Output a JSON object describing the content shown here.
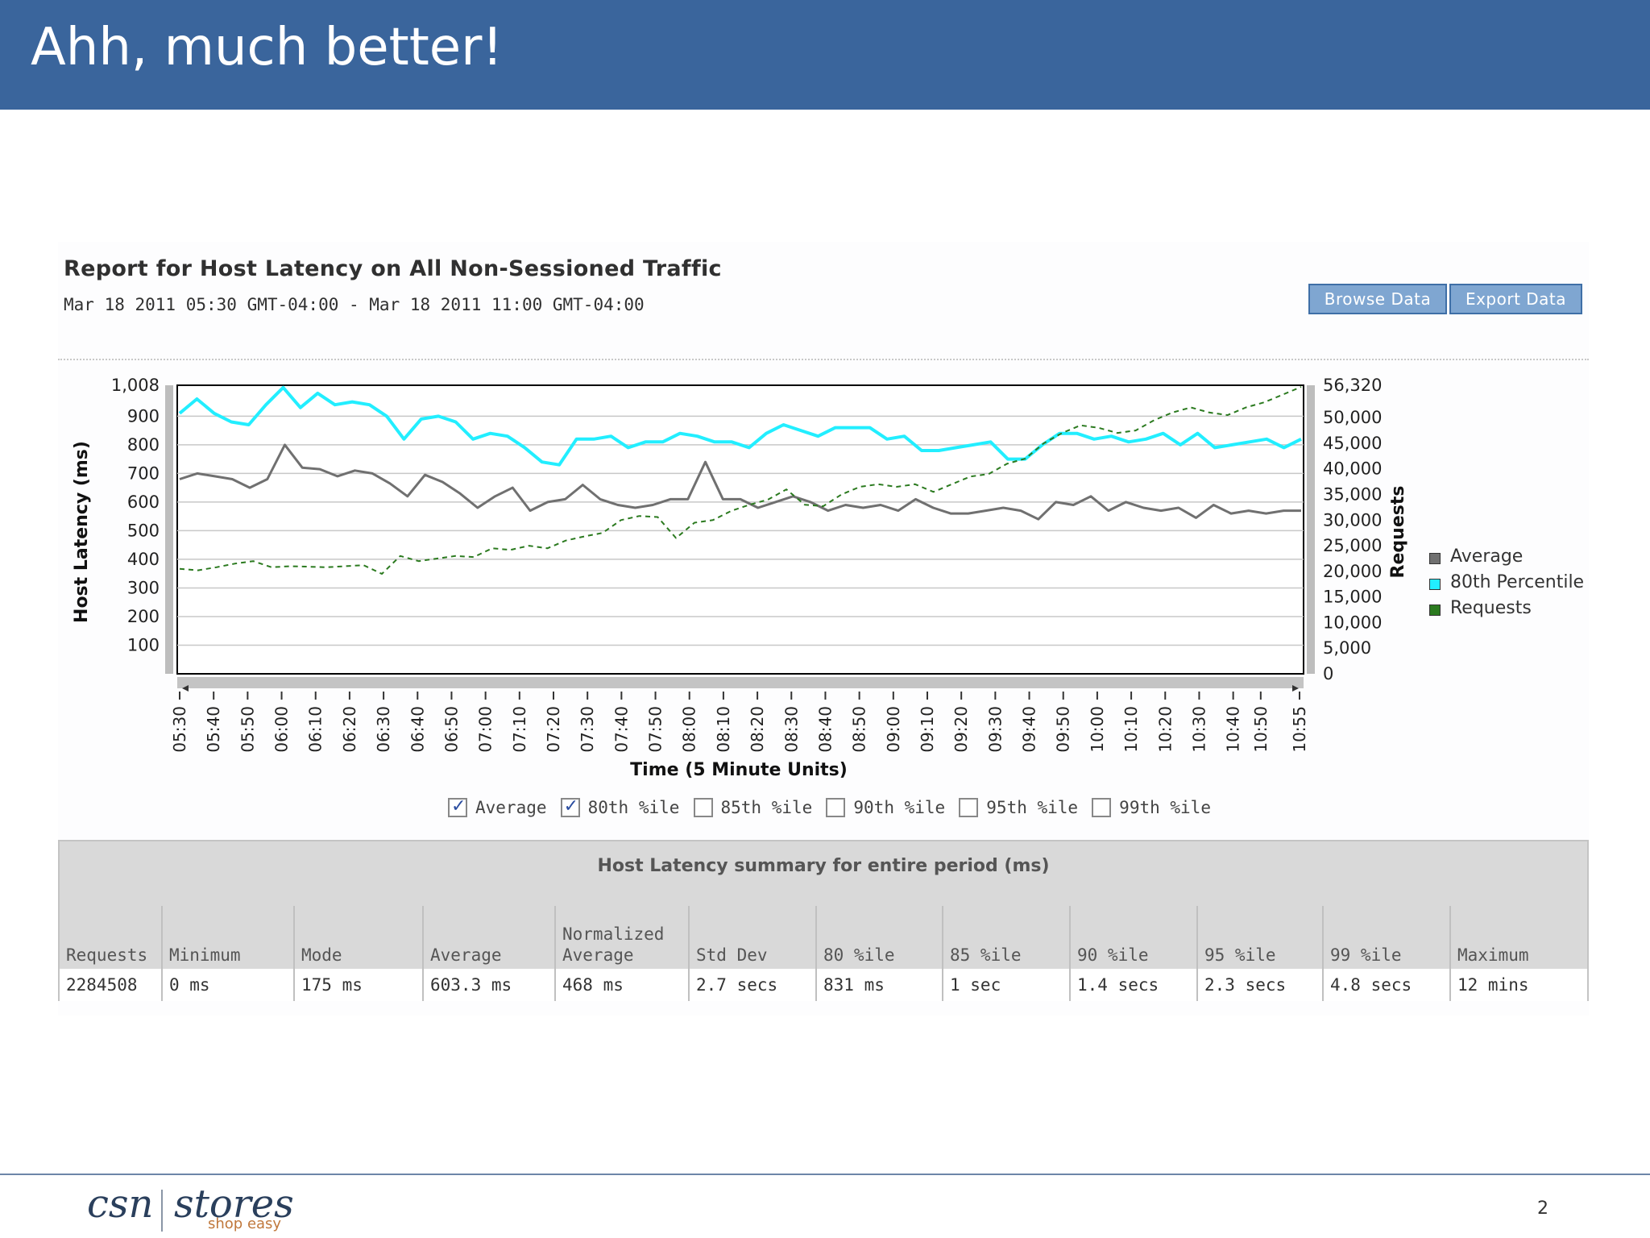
{
  "slide": {
    "title": "Ahh, much better!",
    "page_number": "2"
  },
  "report": {
    "title": "Report for Host Latency on All Non-Sessioned Traffic",
    "range": "Mar 18 2011 05:30 GMT-04:00 - Mar 18 2011 11:00 GMT-04:00",
    "browse_label": "Browse Data",
    "export_label": "Export Data"
  },
  "chart_data": {
    "type": "line",
    "xlabel": "Time (5 Minute Units)",
    "ylabel": "Host Latency (ms)",
    "y2label": "Requests",
    "ylim": [
      0,
      1008
    ],
    "y2lim": [
      0,
      56320
    ],
    "yticks": [
      "1,008",
      "900",
      "800",
      "700",
      "600",
      "500",
      "400",
      "300",
      "200",
      "100"
    ],
    "y2ticks": [
      "56,320",
      "50,000",
      "45,000",
      "40,000",
      "35,000",
      "30,000",
      "25,000",
      "20,000",
      "15,000",
      "10,000",
      "5,000",
      "0"
    ],
    "xticks": [
      "05:30",
      "05:40",
      "05:50",
      "06:00",
      "06:10",
      "06:20",
      "06:30",
      "06:40",
      "06:50",
      "07:00",
      "07:10",
      "07:20",
      "07:30",
      "07:40",
      "07:50",
      "08:00",
      "08:10",
      "08:20",
      "08:30",
      "08:40",
      "08:50",
      "09:00",
      "09:10",
      "09:20",
      "09:30",
      "09:40",
      "09:50",
      "10:00",
      "10:10",
      "10:20",
      "10:30",
      "10:40",
      "10:50",
      "10:55"
    ],
    "grid": true,
    "legend_position": "right",
    "series": [
      {
        "name": "Average",
        "color": "#707070",
        "axis": "left",
        "values": [
          680,
          700,
          690,
          680,
          650,
          680,
          800,
          720,
          715,
          690,
          710,
          700,
          665,
          620,
          695,
          670,
          630,
          580,
          620,
          650,
          570,
          600,
          610,
          660,
          610,
          590,
          580,
          590,
          610,
          610,
          740,
          610,
          610,
          580,
          600,
          620,
          600,
          570,
          590,
          580,
          590,
          570,
          610,
          580,
          560,
          560,
          570,
          580,
          570,
          540,
          600,
          590,
          620,
          570,
          600,
          580,
          570,
          580,
          545,
          590,
          560,
          570,
          560,
          570,
          570
        ]
      },
      {
        "name": "80th Percentile",
        "color": "#22eeff",
        "axis": "left",
        "values": [
          910,
          960,
          910,
          880,
          870,
          940,
          1000,
          930,
          980,
          940,
          950,
          940,
          900,
          820,
          890,
          900,
          880,
          820,
          840,
          830,
          790,
          740,
          730,
          820,
          820,
          830,
          790,
          810,
          810,
          840,
          830,
          810,
          810,
          790,
          840,
          870,
          850,
          830,
          860,
          860,
          860,
          820,
          830,
          780,
          780,
          790,
          800,
          810,
          750,
          750,
          800,
          840,
          840,
          820,
          830,
          810,
          820,
          840,
          800,
          840,
          790,
          800,
          810,
          820,
          790,
          820
        ]
      },
      {
        "name": "Requests",
        "color": "#2b7a1f",
        "axis": "right",
        "values": [
          20500,
          20200,
          20800,
          21500,
          22000,
          20800,
          21000,
          20900,
          20800,
          21000,
          21200,
          19500,
          23000,
          22000,
          22500,
          23000,
          22800,
          24500,
          24200,
          25000,
          24500,
          26000,
          26800,
          27500,
          30000,
          30800,
          30600,
          26500,
          29500,
          30000,
          31800,
          33000,
          34000,
          36000,
          33000,
          32700,
          35000,
          36500,
          37000,
          36500,
          37000,
          35500,
          37000,
          38500,
          39000,
          41000,
          42000,
          45000,
          47000,
          48500,
          48000,
          47000,
          47500,
          49500,
          51000,
          52000,
          51000,
          50500,
          52000,
          53000,
          54500,
          56000
        ]
      }
    ]
  },
  "checkboxes": [
    {
      "label": "Average",
      "checked": true
    },
    {
      "label": "80th %ile",
      "checked": true
    },
    {
      "label": "85th %ile",
      "checked": false
    },
    {
      "label": "90th %ile",
      "checked": false
    },
    {
      "label": "95th %ile",
      "checked": false
    },
    {
      "label": "99th %ile",
      "checked": false
    }
  ],
  "summary": {
    "title": "Host Latency summary for entire period (ms)",
    "columns": [
      {
        "header": "Requests",
        "value": "2284508"
      },
      {
        "header": "Minimum",
        "value": "0 ms"
      },
      {
        "header": "Mode",
        "value": "175 ms"
      },
      {
        "header": "Average",
        "value": "603.3 ms"
      },
      {
        "header": "Normalized Average",
        "value": "468 ms"
      },
      {
        "header": "Std Dev",
        "value": "2.7 secs"
      },
      {
        "header": "80 %ile",
        "value": "831 ms"
      },
      {
        "header": "85 %ile",
        "value": "1 sec"
      },
      {
        "header": "90 %ile",
        "value": "1.4 secs"
      },
      {
        "header": "95 %ile",
        "value": "2.3 secs"
      },
      {
        "header": "99 %ile",
        "value": "4.8 secs"
      },
      {
        "header": "Maximum",
        "value": "12 mins"
      }
    ]
  },
  "footer": {
    "logo_left": "csn",
    "logo_right": "stores",
    "logo_tagline": "shop easy"
  }
}
